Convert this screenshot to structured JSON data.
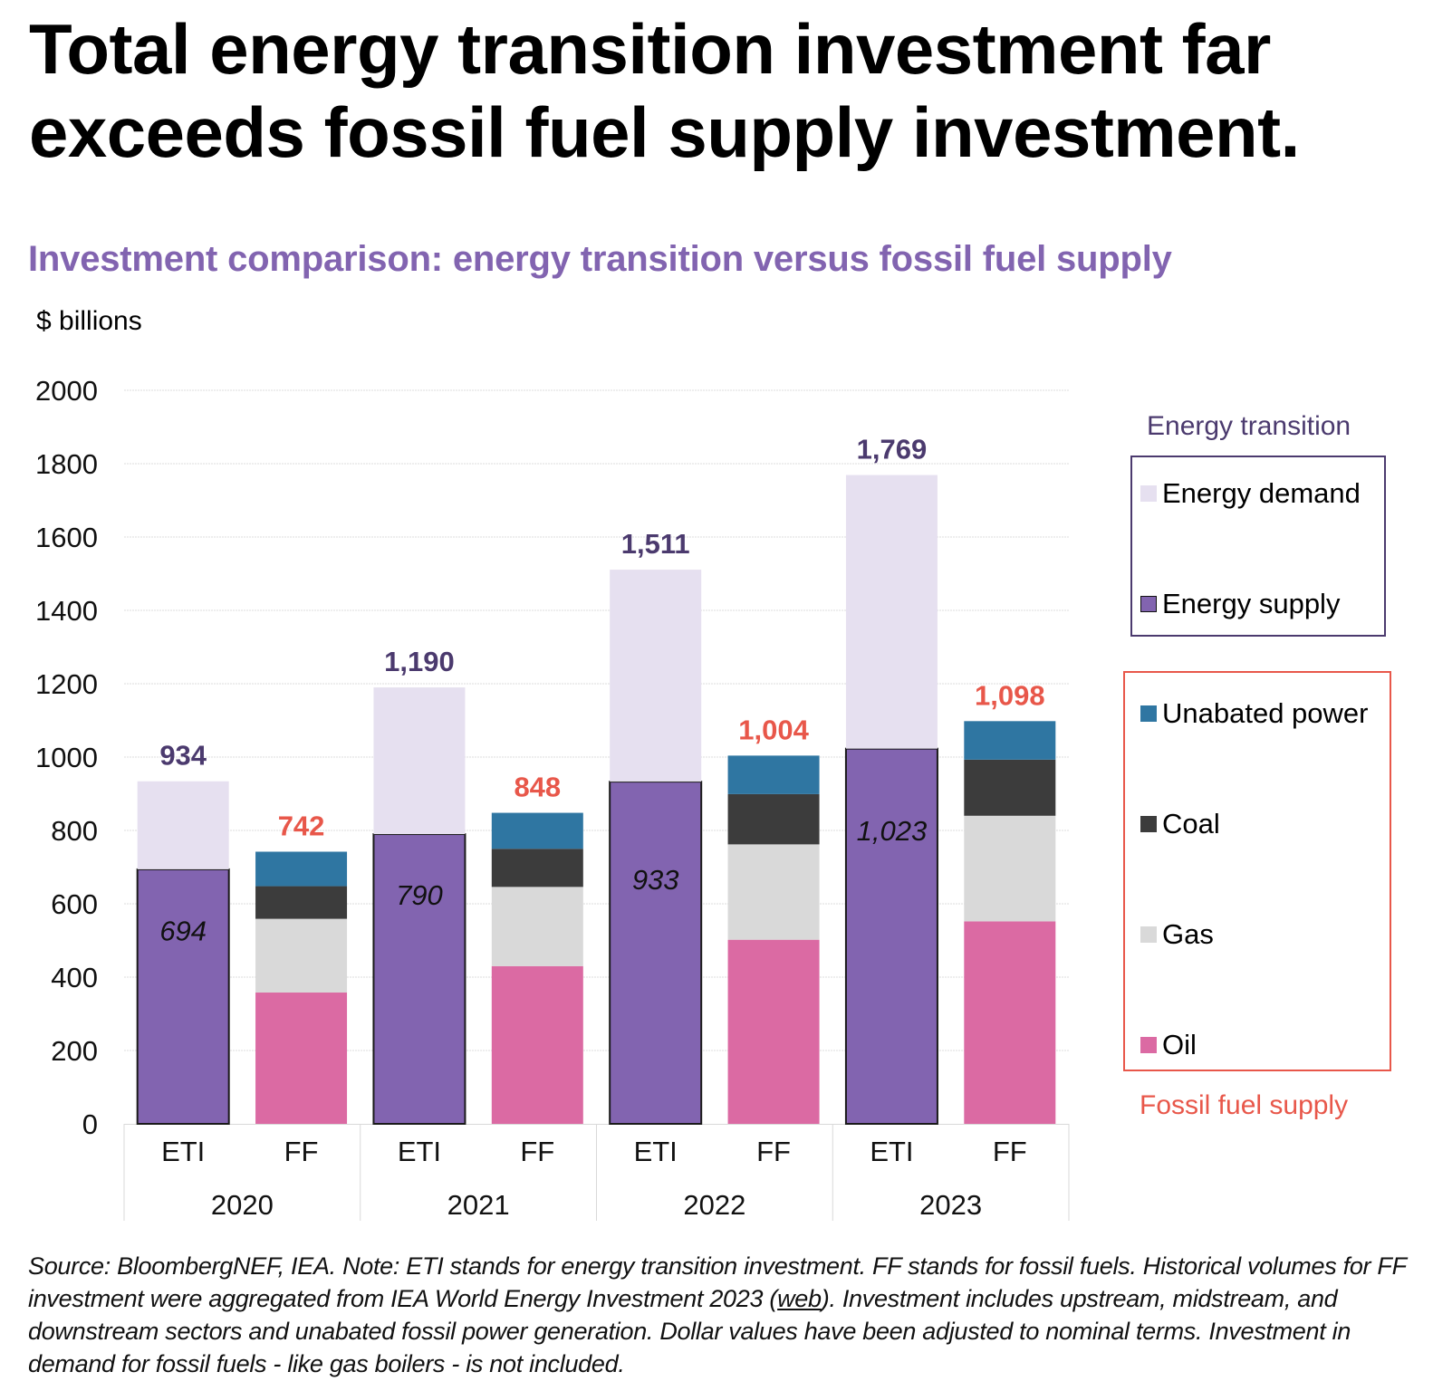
{
  "title_line1": "Total energy transition investment far",
  "title_line2": "exceeds fossil fuel supply investment.",
  "subtitle": "Investment comparison: energy transition versus fossil fuel supply",
  "unit_label": "$ billions",
  "legend": {
    "energy_transition_title": "Energy transition",
    "fossil_fuel_title": "Fossil fuel supply",
    "items": [
      {
        "label": "Energy demand",
        "color": "#e6e0f0"
      },
      {
        "label": "Energy supply",
        "color": "#8264b0"
      },
      {
        "label": "Unabated power",
        "color": "#2f76a2"
      },
      {
        "label": "Coal",
        "color": "#3c3c3c"
      },
      {
        "label": "Gas",
        "color": "#d9d9d9"
      },
      {
        "label": "Oil",
        "color": "#db6aa3"
      }
    ]
  },
  "footnote": {
    "part1": "Source: BloombergNEF, IEA. Note: ETI stands for energy transition investment. FF stands for fossil fuels. Historical volumes for FF investment were aggregated from IEA World Energy Investment 2023 (",
    "link": "web",
    "part2": "). Investment includes upstream, midstream, and downstream sectors and unabated fossil power generation. Dollar values have been adjusted to nominal terms. Investment in demand for fossil fuels - like gas boilers - is not included."
  },
  "chart_data": {
    "type": "bar",
    "stacked": true,
    "title": "Investment comparison: energy transition versus fossil fuel supply",
    "ylabel": "$ billions",
    "xlabel": "",
    "ylim": [
      0,
      2000
    ],
    "yticks": [
      0,
      200,
      400,
      600,
      800,
      1000,
      1200,
      1400,
      1600,
      1800,
      2000
    ],
    "grid": true,
    "legend_position": "right",
    "groups": [
      "2020",
      "2021",
      "2022",
      "2023"
    ],
    "subcategories": [
      "ETI",
      "FF"
    ],
    "eti_series": [
      {
        "name": "Energy supply",
        "color": "#8264b0",
        "values": [
          694,
          790,
          933,
          1023
        ]
      },
      {
        "name": "Energy demand",
        "color": "#e6e0f0",
        "values": [
          240,
          400,
          578,
          746
        ]
      }
    ],
    "ff_series": [
      {
        "name": "Oil",
        "color": "#db6aa3",
        "values": [
          358,
          430,
          502,
          552
        ]
      },
      {
        "name": "Gas",
        "color": "#d9d9d9",
        "values": [
          201,
          216,
          260,
          288
        ]
      },
      {
        "name": "Coal",
        "color": "#3c3c3c",
        "values": [
          89,
          104,
          137,
          153
        ]
      },
      {
        "name": "Unabated power",
        "color": "#2f76a2",
        "values": [
          94,
          98,
          105,
          105
        ]
      }
    ],
    "eti_totals": [
      934,
      1190,
      1511,
      1769
    ],
    "ff_totals": [
      742,
      848,
      1004,
      1098
    ],
    "eti_total_labels": [
      "934",
      "1,190",
      "1,511",
      "1,769"
    ],
    "ff_total_labels": [
      "742",
      "848",
      "1,004",
      "1,098"
    ],
    "eti_supply_labels": [
      "694",
      "790",
      "933",
      "1,023"
    ],
    "eti_total_color": "#4b3a6e",
    "ff_total_color": "#e8574a"
  }
}
